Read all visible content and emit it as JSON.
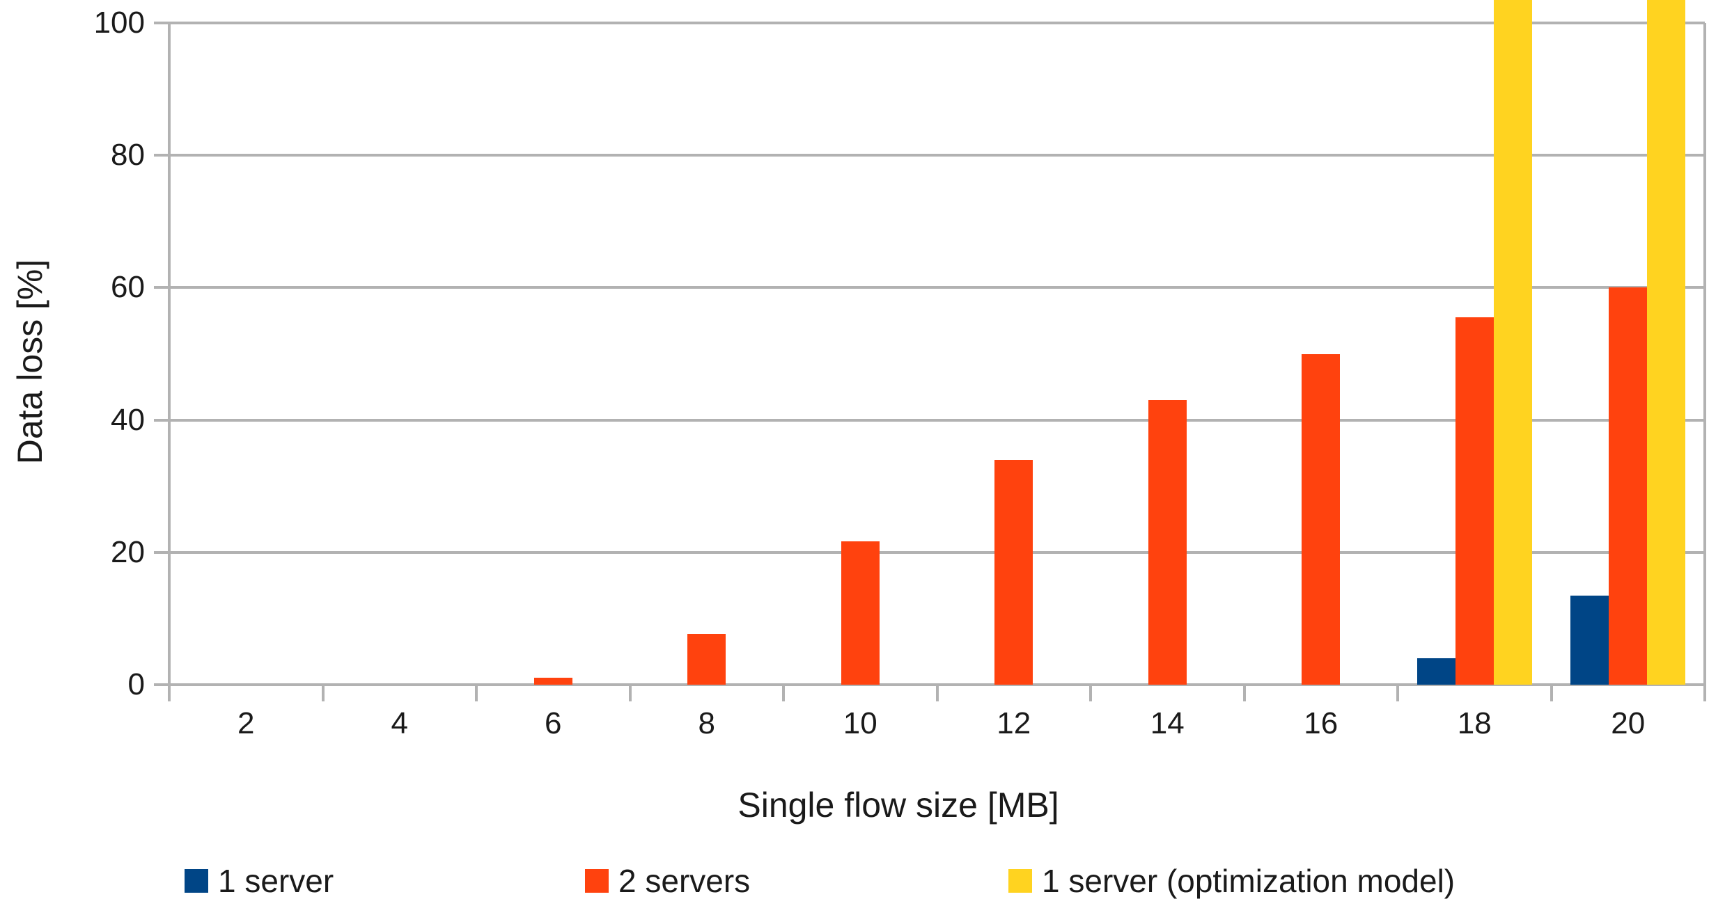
{
  "chart_data": {
    "type": "bar",
    "title": "",
    "xlabel": "Single flow size [MB]",
    "ylabel": "Data loss [%]",
    "categories": [
      "2",
      "4",
      "6",
      "8",
      "10",
      "12",
      "14",
      "16",
      "18",
      "20"
    ],
    "series": [
      {
        "name": "1 server",
        "color": "#004586",
        "values": [
          0,
          0,
          0,
          0,
          0,
          0,
          0,
          0,
          4,
          13.5
        ]
      },
      {
        "name": "2 servers",
        "color": "#FF420E",
        "values": [
          0,
          0,
          1,
          7.7,
          21.7,
          34,
          43,
          50,
          55.5,
          60
        ]
      },
      {
        "name": "1 server (optimization model)",
        "color": "#FFD320",
        "values": [
          0,
          0,
          0,
          0,
          0,
          0,
          0,
          0,
          100,
          100
        ],
        "overflow_beyond_axis": true,
        "note": "bars at categories 18 and 20 are drawn past the 100% axis top up to the image edge (value exceeds axis maximum)"
      }
    ],
    "y_ticks": [
      0,
      20,
      40,
      60,
      80,
      100
    ],
    "ylim": [
      0,
      100
    ],
    "grid": "horizontal gridlines at every y tick",
    "legend_position": "bottom",
    "axis_color": "#b2b2b2",
    "text_color": "#1a1a1a",
    "background_color": "#ffffff"
  }
}
